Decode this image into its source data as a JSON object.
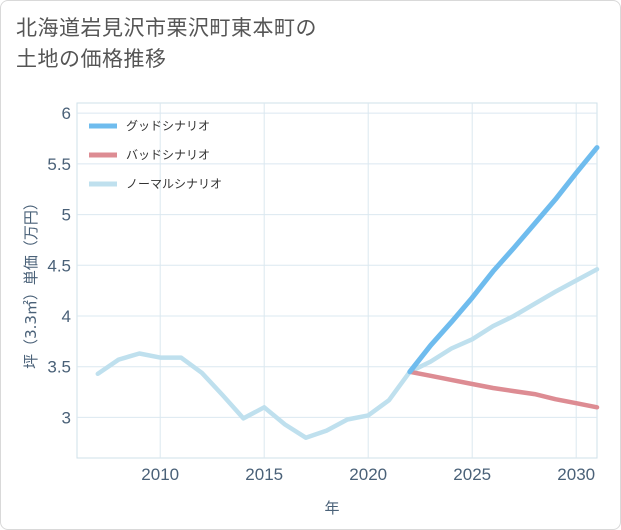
{
  "title_line1": "北海道岩見沢市栗沢町東本町の",
  "title_line2": "土地の価格推移",
  "chart_data": {
    "type": "line",
    "xlabel": "年",
    "ylabel": "坪（3.3㎡）単価（万円）",
    "xlim": [
      2006,
      2031
    ],
    "ylim": [
      2.6,
      6.1
    ],
    "xticks": [
      2010,
      2015,
      2020,
      2025,
      2030
    ],
    "yticks": [
      3,
      3.5,
      4,
      4.5,
      5,
      5.5,
      6
    ],
    "legend_position": "top-left",
    "grid": true,
    "series": [
      {
        "name": "グッドシナリオ",
        "color": "#6fbcee",
        "x": [
          2022,
          2023,
          2024,
          2025,
          2026,
          2027,
          2028,
          2029,
          2030,
          2031
        ],
        "y": [
          3.45,
          3.71,
          3.94,
          4.18,
          4.44,
          4.67,
          4.91,
          5.15,
          5.41,
          5.66
        ]
      },
      {
        "name": "バッドシナリオ",
        "color": "#dd8c93",
        "x": [
          2022,
          2023,
          2024,
          2025,
          2026,
          2027,
          2028,
          2029,
          2030,
          2031
        ],
        "y": [
          3.45,
          3.41,
          3.37,
          3.33,
          3.29,
          3.26,
          3.23,
          3.18,
          3.14,
          3.1
        ]
      },
      {
        "name": "ノーマルシナリオ",
        "color": "#bfe0ee",
        "x": [
          2007,
          2008,
          2009,
          2010,
          2011,
          2012,
          2013,
          2014,
          2015,
          2016,
          2017,
          2018,
          2019,
          2020,
          2021,
          2022,
          2023,
          2024,
          2025,
          2026,
          2027,
          2028,
          2029,
          2030,
          2031
        ],
        "y": [
          3.43,
          3.57,
          3.63,
          3.59,
          3.59,
          3.44,
          3.22,
          2.99,
          3.1,
          2.93,
          2.8,
          2.87,
          2.98,
          3.02,
          3.17,
          3.45,
          3.55,
          3.68,
          3.77,
          3.9,
          4.0,
          4.12,
          4.24,
          4.35,
          4.46
        ]
      }
    ]
  }
}
